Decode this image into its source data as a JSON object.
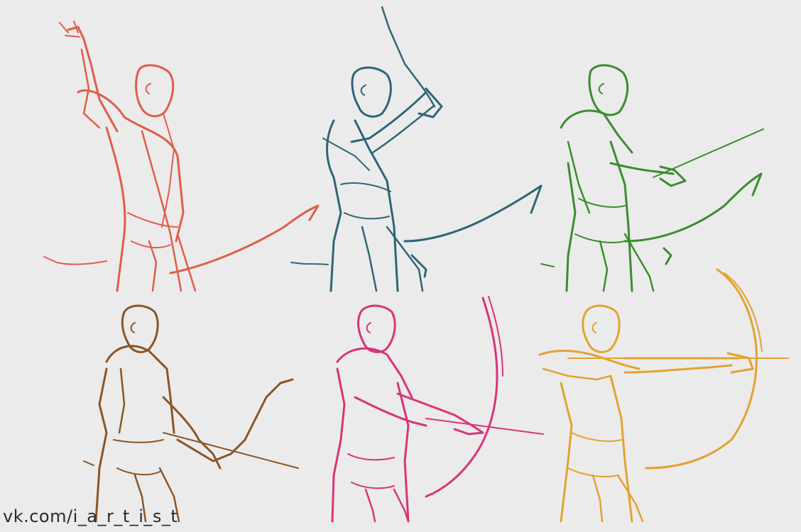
{
  "watermark": "vk.com/i_a_r_t_i_s_t",
  "palette": {
    "red": "#e05d4a",
    "teal": "#2f6577",
    "green": "#3b8c2e",
    "brown": "#8a5526",
    "magenta": "#d9337a",
    "orange": "#e3a22e"
  },
  "figures": [
    {
      "id": "archer-red",
      "color": "red",
      "pose": "reaching-arrow"
    },
    {
      "id": "archer-teal",
      "color": "teal",
      "pose": "drawing-arrow-overhead"
    },
    {
      "id": "archer-green",
      "color": "green",
      "pose": "nocking-arrow"
    },
    {
      "id": "archer-brown",
      "color": "brown",
      "pose": "bow-lowered"
    },
    {
      "id": "archer-magenta",
      "color": "magenta",
      "pose": "partial-draw"
    },
    {
      "id": "archer-orange",
      "color": "orange",
      "pose": "full-draw"
    }
  ]
}
